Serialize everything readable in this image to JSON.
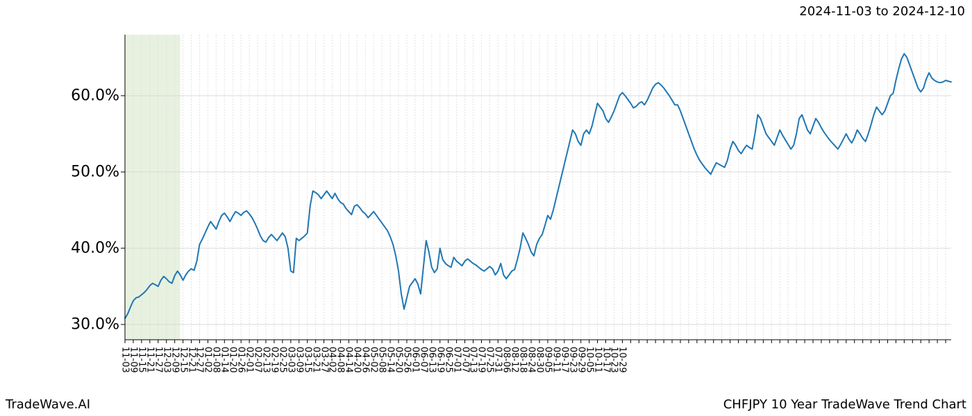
{
  "date_range_label": "2024-11-03 to 2024-12-10",
  "footer_left": "TradeWave.AI",
  "footer_right": "CHFJPY 10 Year TradeWave Trend Chart",
  "chart": {
    "type": "line",
    "background_color": "#ffffff",
    "grid_color": "#d8d8d8",
    "axis_color": "#000000",
    "line_color": "#1f77b4",
    "line_width": 2,
    "highlight_band": {
      "fill": "#e6efdc",
      "opacity": 0.9,
      "x_start_index": 0,
      "x_end_index": 20
    },
    "tick_fontsize": 13,
    "ylabel_fontsize": 22,
    "yaxis": {
      "min": 28,
      "max": 68,
      "ticks": [
        30,
        40,
        50,
        60
      ],
      "tick_labels": [
        "30.0%",
        "40.0%",
        "50.0%",
        "60.0%"
      ]
    },
    "xaxis": {
      "n_points": 200,
      "tick_step": 3,
      "tick_labels": [
        "11-03",
        "11-09",
        "11-15",
        "11-21",
        "11-27",
        "12-03",
        "12-09",
        "12-15",
        "12-21",
        "12-27",
        "01-02",
        "01-08",
        "01-14",
        "01-20",
        "01-26",
        "02-01",
        "02-07",
        "02-13",
        "02-19",
        "02-25",
        "03-03",
        "03-09",
        "03-15",
        "03-21",
        "03-27",
        "04-02",
        "04-08",
        "04-14",
        "04-20",
        "04-26",
        "05-02",
        "05-08",
        "05-14",
        "05-20",
        "05-26",
        "06-01",
        "06-07",
        "06-13",
        "06-19",
        "06-25",
        "07-01",
        "07-07",
        "07-13",
        "07-19",
        "07-25",
        "07-31",
        "08-06",
        "08-12",
        "08-18",
        "08-24",
        "08-30",
        "09-05",
        "09-11",
        "09-17",
        "09-23",
        "09-29",
        "10-05",
        "10-11",
        "10-17",
        "10-23",
        "10-29"
      ]
    },
    "series": {
      "values": [
        30.8,
        31.4,
        32.3,
        33.1,
        33.5,
        33.6,
        33.9,
        34.2,
        34.6,
        35.1,
        35.4,
        35.2,
        35.0,
        35.8,
        36.3,
        36.0,
        35.6,
        35.4,
        36.4,
        37.0,
        36.5,
        35.8,
        36.5,
        37.0,
        37.3,
        37.1,
        38.3,
        40.5,
        41.2,
        42.0,
        42.8,
        43.5,
        43.0,
        42.5,
        43.5,
        44.3,
        44.6,
        44.1,
        43.5,
        44.2,
        44.8,
        44.6,
        44.3,
        44.7,
        44.9,
        44.5,
        44.0,
        43.3,
        42.5,
        41.6,
        41.0,
        40.8,
        41.4,
        41.8,
        41.4,
        41.0,
        41.5,
        42.0,
        41.5,
        40.0,
        37.0,
        36.8,
        41.3,
        41.0,
        41.3,
        41.6,
        42.0,
        45.5,
        47.5,
        47.3,
        47.0,
        46.5,
        47.0,
        47.5,
        47.0,
        46.5,
        47.2,
        46.5,
        46.0,
        45.8,
        45.2,
        44.8,
        44.4,
        45.5,
        45.7,
        45.3,
        44.8,
        44.5,
        44.0,
        44.4,
        44.8,
        44.3,
        43.8,
        43.3,
        42.8,
        42.3,
        41.5,
        40.5,
        39.0,
        37.0,
        34.0,
        32.0,
        33.5,
        35.0,
        35.5,
        36.0,
        35.3,
        34.0,
        37.5,
        41.0,
        39.5,
        37.5,
        36.8,
        37.3,
        40.0,
        38.5,
        38.0,
        37.7,
        37.5,
        38.8,
        38.3,
        38.0,
        37.7,
        38.3,
        38.6,
        38.3,
        38.0,
        37.8,
        37.5,
        37.2,
        37.0,
        37.3,
        37.6,
        37.3,
        36.5,
        37.0,
        38.0,
        36.5,
        36.0,
        36.5,
        37.0,
        37.2,
        38.5,
        40.0,
        42.0,
        41.3,
        40.5,
        39.5,
        39.0,
        40.5,
        41.3,
        41.8,
        43.0,
        44.3,
        43.8,
        45.0,
        46.5,
        48.0,
        49.5,
        51.0,
        52.5,
        54.0,
        55.5,
        55.0,
        54.0,
        53.5,
        55.0,
        55.5,
        55.0,
        56.0,
        57.5,
        59.0,
        58.5,
        58.0,
        57.0,
        56.5,
        57.2,
        58.0,
        59.0,
        60.0,
        60.4,
        60.0,
        59.5,
        59.0,
        58.4,
        58.6,
        59.0,
        59.2,
        58.8,
        59.4,
        60.2,
        61.0,
        61.5,
        61.7,
        61.4,
        61.0,
        60.5,
        60.0,
        59.4,
        58.8
      ]
    },
    "series_tail": {
      "values": [
        58.8,
        58.0,
        57.0,
        56.0,
        55.0,
        54.0,
        53.0,
        52.2,
        51.5,
        51.0,
        50.5,
        50.1,
        49.7,
        50.5,
        51.2,
        51.0,
        50.8,
        50.6,
        51.5,
        53.0,
        54.0,
        53.5,
        52.8,
        52.4,
        53.0,
        53.5,
        53.2,
        53.0,
        55.0,
        57.5,
        57.0,
        56.0,
        55.0,
        54.5,
        54.0,
        53.5,
        54.5,
        55.5,
        54.8,
        54.2,
        53.6,
        53.0,
        53.5,
        55.0,
        57.0,
        57.5,
        56.5,
        55.5,
        55.0,
        56.0,
        57.0,
        56.5,
        55.8,
        55.2,
        54.7,
        54.2,
        53.8,
        53.4,
        53.0,
        53.6,
        54.3,
        55.0,
        54.3,
        53.8,
        54.5,
        55.5,
        55.0,
        54.4,
        54.0,
        55.0,
        56.2,
        57.5,
        58.5,
        58.0,
        57.5,
        58.0,
        59.0,
        60.0,
        60.3,
        62.0,
        63.5,
        64.8,
        65.5,
        65.0,
        64.0,
        63.0,
        62.0,
        61.0,
        60.5,
        61.0,
        62.2,
        63.0,
        62.3,
        62.0,
        61.8,
        61.7,
        61.8,
        62.0,
        61.9,
        61.8
      ]
    }
  }
}
